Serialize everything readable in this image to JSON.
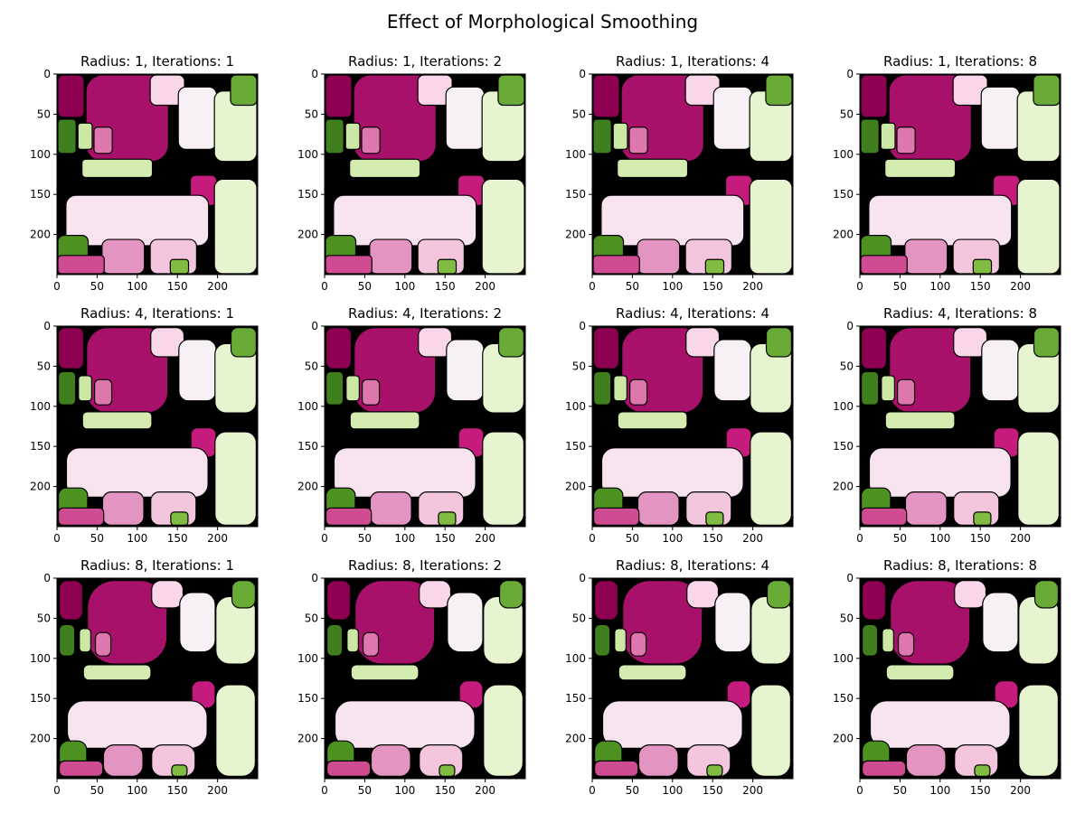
{
  "figure": {
    "title": "Effect of Morphological Smoothing"
  },
  "chart_data": {
    "type": "image",
    "title": "Effect of Morphological Smoothing",
    "layout": "3 rows x 4 columns",
    "x_ticks": [
      "0",
      "50",
      "100",
      "150",
      "200"
    ],
    "y_ticks": [
      "0",
      "50",
      "100",
      "150",
      "200"
    ],
    "xlim": [
      0,
      250
    ],
    "ylim": [
      250,
      0
    ],
    "colormap": "PiYG",
    "panels": [
      {
        "title": "Radius: 1, Iterations: 1",
        "radius": 1,
        "iterations": 1
      },
      {
        "title": "Radius: 1, Iterations: 2",
        "radius": 1,
        "iterations": 2
      },
      {
        "title": "Radius: 1, Iterations: 4",
        "radius": 1,
        "iterations": 4
      },
      {
        "title": "Radius: 1, Iterations: 8",
        "radius": 1,
        "iterations": 8
      },
      {
        "title": "Radius: 4, Iterations: 1",
        "radius": 4,
        "iterations": 1
      },
      {
        "title": "Radius: 4, Iterations: 2",
        "radius": 4,
        "iterations": 2
      },
      {
        "title": "Radius: 4, Iterations: 4",
        "radius": 4,
        "iterations": 4
      },
      {
        "title": "Radius: 4, Iterations: 8",
        "radius": 4,
        "iterations": 8
      },
      {
        "title": "Radius: 8, Iterations: 1",
        "radius": 8,
        "iterations": 1
      },
      {
        "title": "Radius: 8, Iterations: 2",
        "radius": 8,
        "iterations": 2
      },
      {
        "title": "Radius: 8, Iterations: 4",
        "radius": 8,
        "iterations": 4
      },
      {
        "title": "Radius: 8, Iterations: 8",
        "radius": 8,
        "iterations": 8
      }
    ],
    "regions": [
      {
        "label": "dark-magenta-top-left",
        "color": "#8e0152",
        "x": [
          0,
          35
        ],
        "y": [
          0,
          55
        ]
      },
      {
        "label": "magenta-large-center",
        "color": "#a8116a",
        "x": [
          35,
          140
        ],
        "y": [
          0,
          110
        ]
      },
      {
        "label": "pale-pink-top",
        "color": "#f9d6e8",
        "x": [
          115,
          160
        ],
        "y": [
          0,
          40
        ]
      },
      {
        "label": "near-white-center-right",
        "color": "#f7f0f4",
        "x": [
          150,
          200
        ],
        "y": [
          15,
          95
        ]
      },
      {
        "label": "pale-green-right",
        "color": "#e6f5d0",
        "x": [
          195,
          250
        ],
        "y": [
          20,
          110
        ]
      },
      {
        "label": "green-top-right",
        "color": "#6aab38",
        "x": [
          215,
          250
        ],
        "y": [
          0,
          40
        ]
      },
      {
        "label": "dark-green-left",
        "color": "#3f7f1e",
        "x": [
          0,
          25
        ],
        "y": [
          55,
          100
        ]
      },
      {
        "label": "light-green-left",
        "color": "#cce8a5",
        "x": [
          25,
          45
        ],
        "y": [
          60,
          95
        ]
      },
      {
        "label": "mid-pink-left",
        "color": "#de77ae",
        "x": [
          45,
          70
        ],
        "y": [
          65,
          100
        ]
      },
      {
        "label": "light-green-band",
        "color": "#d4ecaf",
        "x": [
          30,
          120
        ],
        "y": [
          105,
          130
        ]
      },
      {
        "label": "magenta-mid",
        "color": "#c51b7d",
        "x": [
          165,
          200
        ],
        "y": [
          125,
          165
        ]
      },
      {
        "label": "pale-pink-large-bottom",
        "color": "#f8e4ef",
        "x": [
          10,
          190
        ],
        "y": [
          150,
          215
        ]
      },
      {
        "label": "pale-green-bottom-right",
        "color": "#e6f5d0",
        "x": [
          195,
          250
        ],
        "y": [
          130,
          250
        ]
      },
      {
        "label": "dark-green-bottom-left",
        "color": "#4d9221",
        "x": [
          0,
          40
        ],
        "y": [
          200,
          240
        ]
      },
      {
        "label": "pink-bottom",
        "color": "#e494c0",
        "x": [
          55,
          110
        ],
        "y": [
          205,
          250
        ]
      },
      {
        "label": "mauve-bottom-left",
        "color": "#cf4c92",
        "x": [
          0,
          60
        ],
        "y": [
          225,
          250
        ]
      },
      {
        "label": "pink-bottom-mid",
        "color": "#f4c6dd",
        "x": [
          115,
          175
        ],
        "y": [
          205,
          250
        ]
      },
      {
        "label": "green-bottom-mid",
        "color": "#7fbc41",
        "x": [
          140,
          165
        ],
        "y": [
          230,
          250
        ]
      }
    ]
  }
}
